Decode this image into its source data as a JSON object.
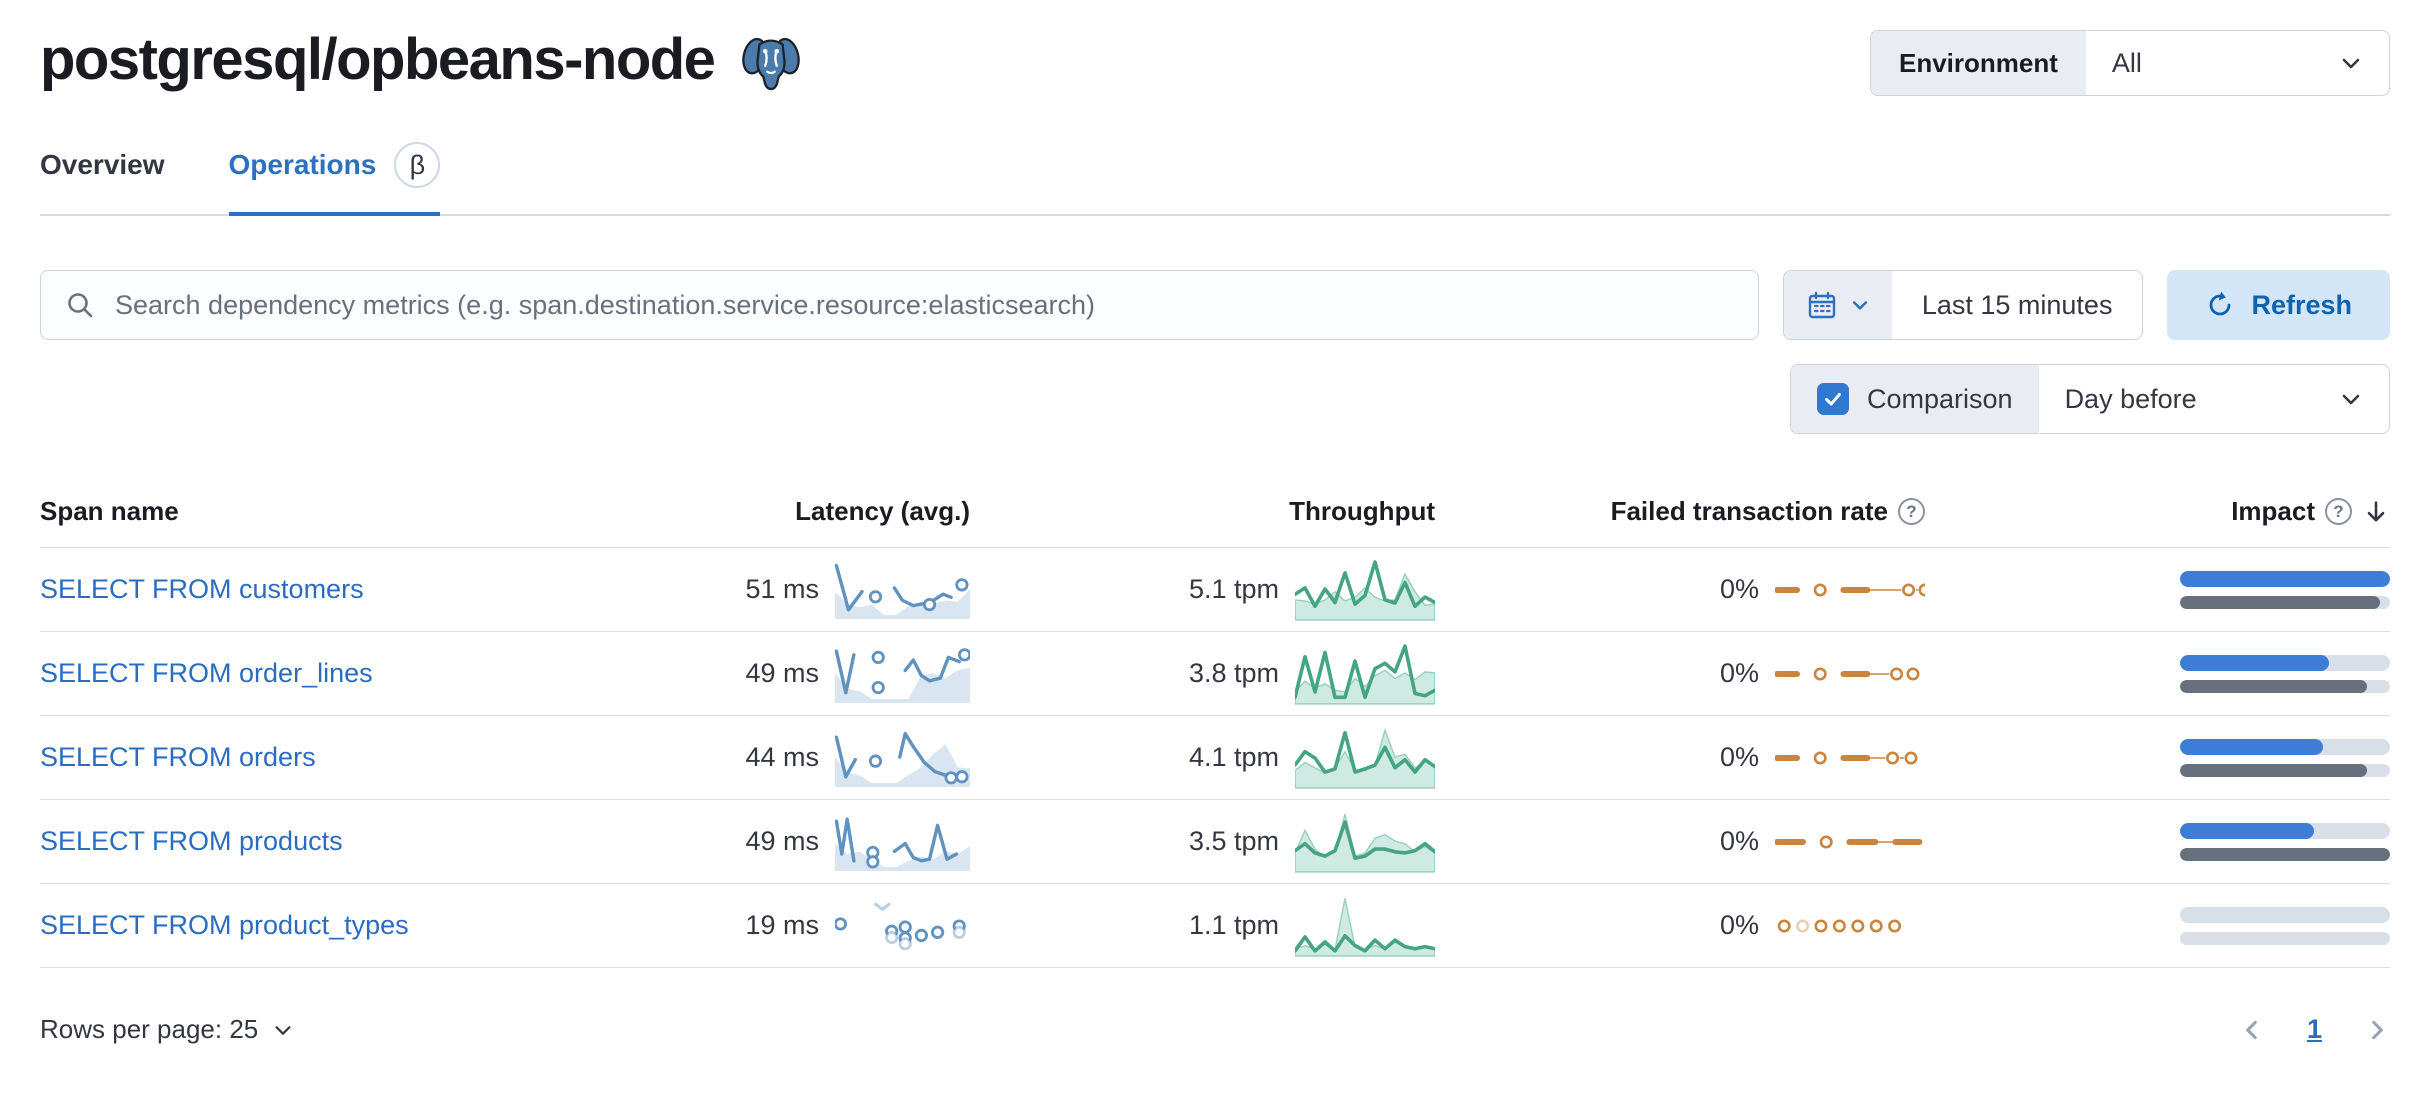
{
  "header": {
    "title": "postgresql/opbeans-node",
    "env_label": "Environment",
    "env_value": "All"
  },
  "tabs": [
    {
      "label": "Overview",
      "active": false
    },
    {
      "label": "Operations",
      "active": true,
      "beta": "β"
    }
  ],
  "search": {
    "placeholder": "Search dependency metrics (e.g. span.destination.service.resource:elasticsearch)"
  },
  "time": {
    "range_label": "Last 15 minutes",
    "refresh_label": "Refresh"
  },
  "comparison": {
    "checked": true,
    "label": "Comparison",
    "value": "Day before"
  },
  "icons": {
    "help_glyph": "?"
  },
  "colors": {
    "link": "#2b6cc0",
    "tab_active": "#2e70c0",
    "latency_line": "#6092C0",
    "latency_fill": "rgba(96,146,192,0.24)",
    "latency_faded": "rgba(96,146,192,0.45)",
    "throughput_line": "#45A583",
    "throughput_fill": "rgba(84,179,153,0.28)",
    "throughput_area_stroke": "rgba(84,179,153,0.55)",
    "failed_line": "#C9843F",
    "failed_faded": "rgba(201,132,63,0.4)",
    "impact_current": "#3d7dd8",
    "impact_previous": "#69707d",
    "impact_track": "#d9dfe9"
  },
  "table": {
    "columns": [
      "Span name",
      "Latency (avg.)",
      "Throughput",
      "Failed transaction rate",
      "Impact"
    ],
    "rows": [
      {
        "name": "SELECT FROM customers",
        "latency": "51 ms",
        "throughput": "5.1 tpm",
        "failed": "0%",
        "impact": {
          "current": 100,
          "previous": 95
        },
        "sparks": {
          "latency": {
            "area": [
              0.45,
              0.2,
              0.15,
              0.2,
              0,
              0,
              0.18,
              0.2,
              0.22,
              0.28,
              0.25,
              0.5
            ],
            "segs": [
              [
                [
                  0.01,
                  0.95
                ],
                [
                  0.1,
                  0.1
                ],
                [
                  0.2,
                  0.45
                ]
              ],
              [
                [
                  0.44,
                  0.52
                ],
                [
                  0.5,
                  0.28
                ],
                [
                  0.58,
                  0.18
                ],
                [
                  0.66,
                  0.22
                ],
                [
                  0.74,
                  0.3
                ],
                [
                  0.8,
                  0.4
                ],
                [
                  0.86,
                  0.34
                ]
              ]
            ],
            "dots": [
              [
                0.3,
                0.35
              ],
              [
                0.7,
                0.2
              ],
              [
                0.94,
                0.58
              ]
            ]
          },
          "throughput": {
            "area": [
              0.3,
              0.28,
              0.22,
              0.3,
              0.45,
              0.28,
              0.35,
              0.52,
              0.35,
              0.28,
              0.3,
              0.78,
              0.45,
              0.2,
              0.22
            ],
            "line": [
              0.4,
              0.52,
              0.18,
              0.5,
              0.25,
              0.8,
              0.22,
              0.38,
              1.0,
              0.3,
              0.24,
              0.62,
              0.18,
              0.35,
              0.25
            ]
          },
          "failed": {
            "tokens": [
              [
                "dash",
                20
              ],
              [
                "gap",
                16
              ],
              [
                "dot",
                0
              ],
              [
                "gap",
                16
              ],
              [
                "dash",
                24
              ],
              [
                "thin",
                34
              ],
              [
                "dot",
                0
              ],
              [
                "thin",
                2
              ],
              [
                "dot",
                0
              ]
            ]
          }
        }
      },
      {
        "name": "SELECT FROM order_lines",
        "latency": "49 ms",
        "throughput": "3.8 tpm",
        "failed": "0%",
        "impact": {
          "current": 71,
          "previous": 89
        },
        "sparks": {
          "latency": {
            "area": [
              0.5,
              0.2,
              0.15,
              0,
              0,
              0,
              0,
              0.45,
              0.5,
              0.4,
              0.55,
              0.6
            ],
            "segs": [
              [
                [
                  0.01,
                  0.92
                ],
                [
                  0.08,
                  0.12
                ],
                [
                  0.14,
                  0.85
                ]
              ],
              [
                [
                  0.52,
                  0.55
                ],
                [
                  0.58,
                  0.75
                ],
                [
                  0.64,
                  0.45
                ],
                [
                  0.7,
                  0.35
                ],
                [
                  0.78,
                  0.4
                ],
                [
                  0.84,
                  0.8
                ],
                [
                  0.92,
                  0.72
                ]
              ]
            ],
            "dots": [
              [
                0.32,
                0.8
              ],
              [
                0.32,
                0.22
              ],
              [
                0.96,
                0.85
              ]
            ]
          },
          "throughput": {
            "area": [
              0.15,
              0.35,
              0.22,
              0.3,
              0.18,
              0.15,
              0.4,
              0.25,
              0.45,
              0.55,
              0.4,
              0.5,
              0.38,
              0.52,
              0.5
            ],
            "line": [
              0.05,
              0.8,
              0.15,
              0.88,
              0.05,
              0.05,
              0.72,
              0.05,
              0.58,
              0.68,
              0.52,
              1.0,
              0.12,
              0.08,
              0.18
            ]
          },
          "failed": {
            "tokens": [
              [
                "dash",
                20
              ],
              [
                "gap",
                16
              ],
              [
                "dot",
                0
              ],
              [
                "gap",
                16
              ],
              [
                "dash",
                24
              ],
              [
                "thin",
                22
              ],
              [
                "dot",
                0
              ],
              [
                "gap",
                2
              ],
              [
                "dot",
                0
              ]
            ]
          }
        }
      },
      {
        "name": "SELECT FROM orders",
        "latency": "44 ms",
        "throughput": "4.1 tpm",
        "failed": "0%",
        "impact": {
          "current": 68,
          "previous": 89
        },
        "sparks": {
          "latency": {
            "area": [
              0.5,
              0.2,
              0.15,
              0,
              0,
              0,
              0.15,
              0.3,
              0.55,
              0.75,
              0.3,
              0.28
            ],
            "segs": [
              [
                [
                  0.01,
                  0.88
                ],
                [
                  0.08,
                  0.12
                ],
                [
                  0.15,
                  0.45
                ]
              ],
              [
                [
                  0.48,
                  0.5
                ],
                [
                  0.52,
                  0.95
                ],
                [
                  0.58,
                  0.7
                ],
                [
                  0.66,
                  0.4
                ],
                [
                  0.74,
                  0.22
                ],
                [
                  0.82,
                  0.15
                ]
              ]
            ],
            "dots": [
              [
                0.3,
                0.42
              ],
              [
                0.86,
                0.1
              ],
              [
                0.94,
                0.12
              ]
            ]
          },
          "throughput": {
            "area": [
              0.25,
              0.4,
              0.3,
              0.2,
              0.3,
              0.6,
              0.25,
              0.25,
              0.35,
              1.0,
              0.5,
              0.55,
              0.3,
              0.42,
              0.35
            ],
            "line": [
              0.35,
              0.6,
              0.48,
              0.22,
              0.28,
              0.95,
              0.22,
              0.28,
              0.35,
              0.68,
              0.3,
              0.45,
              0.22,
              0.45,
              0.32
            ]
          },
          "failed": {
            "tokens": [
              [
                "dash",
                20
              ],
              [
                "gap",
                16
              ],
              [
                "dot",
                0
              ],
              [
                "gap",
                16
              ],
              [
                "dash",
                24
              ],
              [
                "thin",
                18
              ],
              [
                "dot",
                0
              ],
              [
                "thin",
                4
              ],
              [
                "dot",
                0
              ]
            ]
          }
        }
      },
      {
        "name": "SELECT FROM products",
        "latency": "49 ms",
        "throughput": "3.5 tpm",
        "failed": "0%",
        "impact": {
          "current": 64,
          "previous": 100
        },
        "sparks": {
          "latency": {
            "area": [
              0.45,
              0.25,
              0.3,
              0.15,
              0,
              0,
              0.12,
              0.2,
              0.15,
              0.3,
              0.25,
              0.4
            ],
            "segs": [
              [
                [
                  0.01,
                  0.88
                ],
                [
                  0.05,
                  0.25
                ],
                [
                  0.09,
                  0.92
                ],
                [
                  0.14,
                  0.12
                ]
              ],
              [
                [
                  0.44,
                  0.3
                ],
                [
                  0.52,
                  0.45
                ],
                [
                  0.58,
                  0.18
                ],
                [
                  0.64,
                  0.12
                ],
                [
                  0.7,
                  0.15
                ],
                [
                  0.76,
                  0.8
                ],
                [
                  0.83,
                  0.15
                ],
                [
                  0.9,
                  0.25
                ]
              ]
            ],
            "dots": [
              [
                0.28,
                0.28
              ],
              [
                0.28,
                0.1
              ]
            ]
          },
          "throughput": {
            "area": [
              0.28,
              0.7,
              0.35,
              0.2,
              0.3,
              1.0,
              0.22,
              0.28,
              0.55,
              0.62,
              0.5,
              0.45,
              0.3,
              0.4,
              0.28
            ],
            "line": [
              0.32,
              0.45,
              0.28,
              0.22,
              0.32,
              0.85,
              0.18,
              0.22,
              0.35,
              0.35,
              0.3,
              0.28,
              0.32,
              0.45,
              0.3
            ]
          },
          "failed": {
            "tokens": [
              [
                "dash",
                26
              ],
              [
                "gap",
                16
              ],
              [
                "dot",
                0
              ],
              [
                "gap",
                16
              ],
              [
                "dash",
                26
              ],
              [
                "thin",
                20
              ],
              [
                "dash",
                24
              ]
            ]
          }
        }
      },
      {
        "name": "SELECT FROM product_types",
        "latency": "19 ms",
        "throughput": "1.1 tpm",
        "failed": "0%",
        "impact": {
          "current": 0,
          "previous": 0
        },
        "sparks": {
          "latency": {
            "area": [],
            "fsegs": [
              [
                [
                  0.3,
                  0.9
                ],
                [
                  0.35,
                  0.8
                ],
                [
                  0.4,
                  0.9
                ]
              ]
            ],
            "dots": [
              [
                0.04,
                0.52
              ],
              [
                0.42,
                0.38
              ],
              [
                0.52,
                0.46
              ],
              [
                0.52,
                0.25
              ],
              [
                0.64,
                0.3
              ],
              [
                0.76,
                0.36
              ],
              [
                0.92,
                0.48
              ]
            ],
            "fdots": [
              [
                0.42,
                0.26
              ],
              [
                0.52,
                0.14
              ],
              [
                0.92,
                0.36
              ]
            ]
          },
          "throughput": {
            "area": [
              0.05,
              0.12,
              0.05,
              0.22,
              0.05,
              1.0,
              0.1,
              0.05,
              0.12,
              0.05,
              0.18,
              0.08,
              0.05,
              0.08,
              0.05
            ],
            "line": [
              0.02,
              0.28,
              0.02,
              0.18,
              0.02,
              0.3,
              0.12,
              0.02,
              0.22,
              0.06,
              0.22,
              0.1,
              0.06,
              0.1,
              0.06
            ]
          },
          "failed": {
            "tokens": [
              [
                "dot",
                0
              ],
              [
                "gap",
                4
              ],
              [
                "fdot",
                0
              ],
              [
                "gap",
                4
              ],
              [
                "dot",
                0
              ],
              [
                "gap",
                4
              ],
              [
                "dot",
                0
              ],
              [
                "gap",
                4
              ],
              [
                "dot",
                0
              ],
              [
                "gap",
                4
              ],
              [
                "dot",
                0
              ],
              [
                "gap",
                4
              ],
              [
                "dot",
                0
              ]
            ]
          }
        }
      }
    ]
  },
  "footer": {
    "rows_per_page_label": "Rows per page: 25",
    "page": "1"
  }
}
